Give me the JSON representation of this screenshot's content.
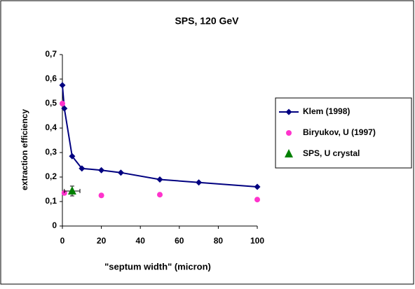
{
  "chart_data": {
    "type": "scatter",
    "title": "SPS, 120 GeV",
    "xlabel": "\"septum width\" (micron)",
    "ylabel": "extraction efficiency",
    "xlim": [
      0,
      100
    ],
    "xticks": [
      0,
      20,
      40,
      60,
      80,
      100
    ],
    "ylim": [
      0,
      0.7
    ],
    "yticks": [
      0,
      {
        "value": 0.1,
        "label": "0,1"
      },
      {
        "value": 0.2,
        "label": "0,2"
      },
      {
        "value": 0.3,
        "label": "0,3"
      },
      {
        "value": 0.4,
        "label": "0,4"
      },
      {
        "value": 0.5,
        "label": "0,5"
      },
      {
        "value": 0.6,
        "label": "0,6"
      },
      {
        "value": 0.7,
        "label": "0,7"
      }
    ],
    "legend": "right",
    "series": [
      {
        "name": "Klem (1998)",
        "color": "#000080",
        "marker": "diamond",
        "line": true,
        "x": [
          0,
          1,
          5,
          10,
          20,
          30,
          50,
          70,
          100
        ],
        "values": [
          0.575,
          0.48,
          0.285,
          0.235,
          0.228,
          0.218,
          0.19,
          0.178,
          0.16
        ]
      },
      {
        "name": "Biryukov, U (1997)",
        "color": "#ff33cc",
        "marker": "circle",
        "line": false,
        "x": [
          0,
          1,
          20,
          50,
          100
        ],
        "values": [
          0.5,
          0.135,
          0.125,
          0.128,
          0.108
        ]
      },
      {
        "name": "SPS, U crystal",
        "color": "#008000",
        "marker": "triangle",
        "line": false,
        "x": [
          5
        ],
        "values": [
          0.143
        ],
        "xerr": [
          4
        ],
        "yerr": [
          0.02
        ]
      }
    ]
  }
}
